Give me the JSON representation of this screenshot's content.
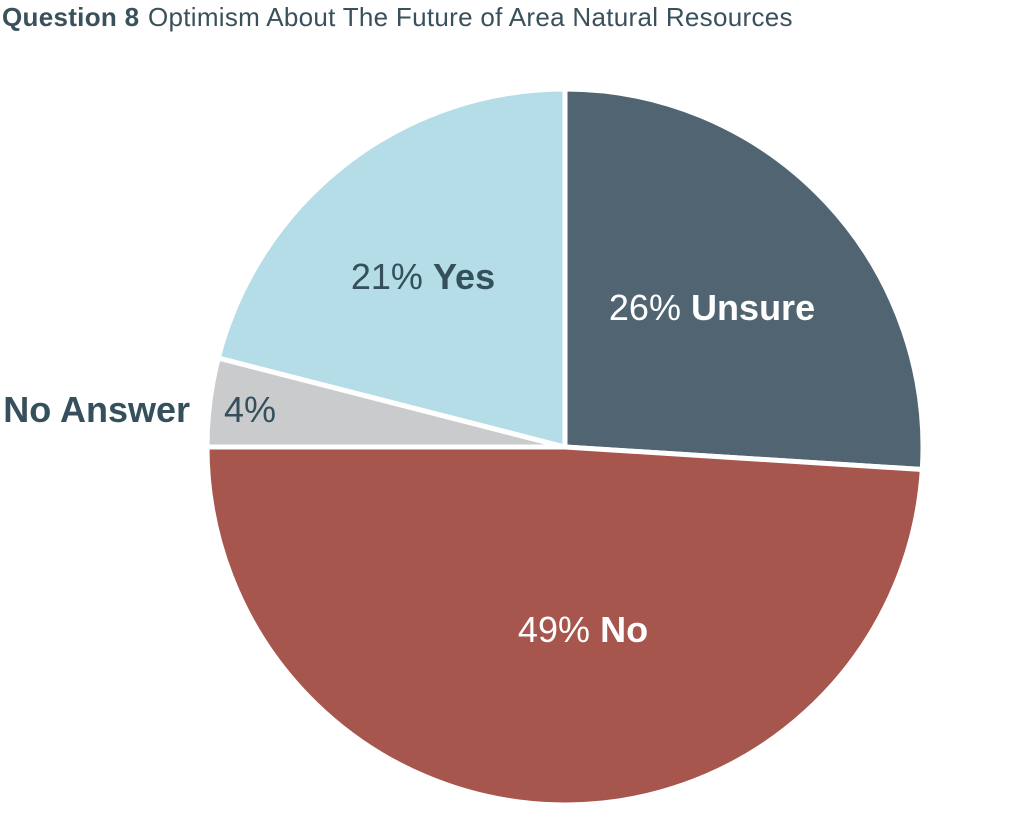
{
  "page": {
    "title_bold": "Question 8",
    "title_rest": "Optimism About The Future of Area Natural Resources"
  },
  "chart_data": {
    "type": "pie",
    "title": "Question 8 Optimism About The Future of Area Natural Resources",
    "title_color": "#3a515c",
    "background_color": "#ffffff",
    "separator_color": "#ffffff",
    "start_angle_deg": -90,
    "direction": "clockwise",
    "total_pct": 100,
    "slices": [
      {
        "label": "Unsure",
        "value_pct": 26,
        "pct_label": "26%",
        "color": "#506571",
        "text_color": "#ffffff",
        "label_placement": "inside"
      },
      {
        "label": "No",
        "value_pct": 49,
        "pct_label": "49%",
        "color": "#a7564e",
        "text_color": "#ffffff",
        "label_placement": "inside"
      },
      {
        "label": "No Answer",
        "value_pct": 4,
        "pct_label": "4%",
        "color": "#cacbcd",
        "text_color": "#35505c",
        "label_placement": "outside"
      },
      {
        "label": "Yes",
        "value_pct": 21,
        "pct_label": "21%",
        "color": "#b4dde7",
        "text_color": "#35505c",
        "label_placement": "inside"
      }
    ]
  }
}
